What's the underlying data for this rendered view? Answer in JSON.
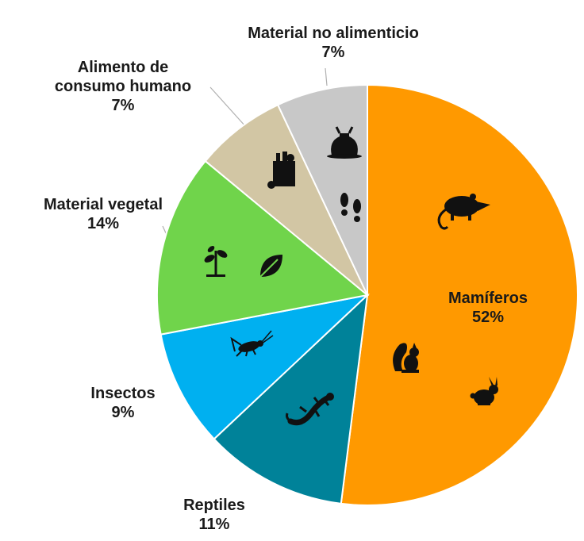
{
  "chart_data": {
    "type": "pie",
    "title": "",
    "slices": [
      {
        "label": "Mamíferos",
        "value": 52,
        "value_label": "52%",
        "color": "#FF9900",
        "icons": [
          "opossum-icon",
          "squirrel-icon",
          "rabbit-icon"
        ]
      },
      {
        "label": "Reptiles",
        "value": 11,
        "value_label": "11%",
        "color": "#008299",
        "icons": [
          "lizard-icon"
        ]
      },
      {
        "label": "Insectos",
        "value": 9,
        "value_label": "9%",
        "color": "#00B0F0",
        "icons": [
          "cricket-icon"
        ]
      },
      {
        "label": "Material vegetal",
        "value": 14,
        "value_label": "14%",
        "color": "#70D44B",
        "icons": [
          "plant-icon",
          "leaf-icon"
        ]
      },
      {
        "label": "Alimento de consumo humano",
        "value": 7,
        "value_label": "7%",
        "color": "#D2C6A4",
        "icons": [
          "grocery-bag-icon"
        ]
      },
      {
        "label": "Material no alimenticio",
        "value": 7,
        "value_label": "7%",
        "color": "#C8C8C8",
        "icons": [
          "trash-bag-icon",
          "footprints-icon"
        ]
      }
    ],
    "legend": "none",
    "start": "top",
    "direction": "clockwise"
  }
}
